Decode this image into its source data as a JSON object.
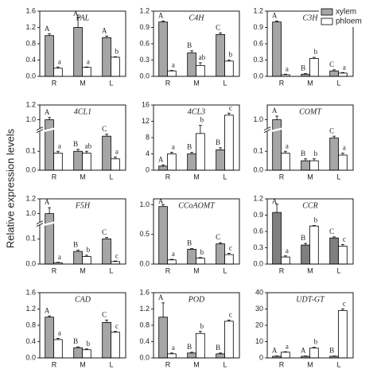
{
  "ylabel": "Relative expression levels",
  "chart_data": [
    {
      "type": "bar",
      "title": "PAL",
      "categories": [
        "R",
        "M",
        "L"
      ],
      "ylim": [
        0,
        1.6
      ],
      "yticks": [
        {
          "value": 0,
          "label": "0.0"
        },
        0.4,
        0.8,
        1.2,
        1.6
      ],
      "series": [
        {
          "name": "xylem",
          "color": "#a6a6a6",
          "values": [
            1.0,
            1.2,
            0.95
          ],
          "errors": [
            0.04,
            0.25,
            0.04
          ],
          "letters": [
            "A",
            "A",
            "A"
          ]
        },
        {
          "name": "phloem",
          "color": "#ffffff",
          "values": [
            0.2,
            0.22,
            0.47
          ],
          "errors": [
            0.03,
            0.01,
            0.01
          ],
          "letters": [
            "a",
            "a",
            "b"
          ]
        }
      ]
    },
    {
      "type": "bar",
      "title": "C4H",
      "categories": [
        "R",
        "M",
        "L"
      ],
      "ylim": [
        0,
        1.2
      ],
      "yticks": [
        {
          "value": 0,
          "label": "0.0"
        },
        0.3,
        0.6,
        0.9,
        1.2
      ],
      "series": [
        {
          "name": "xylem",
          "color": "#a6a6a6",
          "values": [
            1.0,
            0.43,
            0.77
          ],
          "errors": [
            0.02,
            0.04,
            0.03
          ],
          "letters": [
            "A",
            "B",
            "C"
          ]
        },
        {
          "name": "phloem",
          "color": "#ffffff",
          "values": [
            0.1,
            0.2,
            0.28
          ],
          "errors": [
            0.01,
            0.05,
            0.02
          ],
          "letters": [
            "a",
            "ab",
            "b"
          ]
        }
      ]
    },
    {
      "type": "bar",
      "title": "C3H",
      "categories": [
        "R",
        "M",
        "L"
      ],
      "ylim": [
        0,
        1.2
      ],
      "legend": "upper right",
      "yticks": [
        {
          "value": 0,
          "label": "0.0"
        },
        0.3,
        0.6,
        0.9,
        1.2
      ],
      "series": [
        {
          "name": "xylem",
          "color": "#a6a6a6",
          "values": [
            1.0,
            0.04,
            0.1
          ],
          "errors": [
            0.02,
            0.01,
            0.02
          ],
          "letters": [
            "A",
            "B",
            "C"
          ]
        },
        {
          "name": "phloem",
          "color": "#ffffff",
          "values": [
            0.03,
            0.33,
            0.06
          ],
          "errors": [
            0.01,
            0.02,
            0.01
          ],
          "letters": [
            "a",
            "b",
            "a"
          ]
        }
      ]
    },
    {
      "type": "bar",
      "title": "4CL1",
      "categories": [
        "R",
        "M",
        "L"
      ],
      "ylim": [
        0,
        1.2
      ],
      "ybreak": [
        0.2,
        0.9
      ],
      "yticks": [
        {
          "value": 0,
          "label": "0.0"
        },
        0.1,
        {
          "value": 1,
          "label": "1.0"
        },
        1.2
      ],
      "series": [
        {
          "name": "xylem",
          "color": "#a6a6a6",
          "values": [
            1.0,
            0.1,
            0.18
          ],
          "errors": [
            0.03,
            0.01,
            0.01
          ],
          "letters": [
            "A",
            "B",
            "C"
          ]
        },
        {
          "name": "phloem",
          "color": "#ffffff",
          "values": [
            0.09,
            0.09,
            0.06
          ],
          "errors": [
            0.01,
            0.01,
            0.01
          ],
          "letters": [
            "a",
            "ab",
            "a"
          ]
        }
      ]
    },
    {
      "type": "bar",
      "title": "4CL3",
      "categories": [
        "R",
        "M",
        "L"
      ],
      "ylim": [
        0,
        16
      ],
      "yticks": [
        0,
        4,
        8,
        12,
        16
      ],
      "series": [
        {
          "name": "xylem",
          "color": "#a6a6a6",
          "values": [
            1,
            4,
            5
          ],
          "errors": [
            0.3,
            0.4,
            0.5
          ],
          "letters": [
            "A",
            "B",
            "B"
          ]
        },
        {
          "name": "phloem",
          "color": "#ffffff",
          "values": [
            4,
            9,
            13.5
          ],
          "errors": [
            0.4,
            2,
            0.5
          ],
          "letters": [
            "a",
            "b",
            "c"
          ]
        }
      ]
    },
    {
      "type": "bar",
      "title": "COMT",
      "categories": [
        "R",
        "M",
        "L"
      ],
      "ylim": [
        0,
        1.2
      ],
      "ybreak": [
        0.2,
        0.9
      ],
      "yticks": [
        {
          "value": 0,
          "label": "0.0"
        },
        0.1,
        {
          "value": 1,
          "label": "1.0"
        }
      ],
      "series": [
        {
          "name": "xylem",
          "color": "#a6a6a6",
          "values": [
            1.0,
            0.05,
            0.17
          ],
          "errors": [
            0.05,
            0.01,
            0.01
          ],
          "letters": [
            "A",
            "B",
            "C"
          ]
        },
        {
          "name": "phloem",
          "color": "#ffffff",
          "values": [
            0.09,
            0.05,
            0.08
          ],
          "errors": [
            0.01,
            0.01,
            0.01
          ],
          "letters": [
            "a",
            "b",
            "a"
          ]
        }
      ]
    },
    {
      "type": "bar",
      "title": "F5H",
      "categories": [
        "R",
        "M",
        "L"
      ],
      "ylim": [
        0,
        1.2
      ],
      "ybreak": [
        0.15,
        0.9
      ],
      "yticks": [
        {
          "value": 0,
          "label": "0.0"
        },
        0.1,
        {
          "value": 1,
          "label": "1.0"
        },
        1.2
      ],
      "series": [
        {
          "name": "xylem",
          "color": "#a6a6a6",
          "values": [
            1.0,
            0.05,
            0.1
          ],
          "errors": [
            0.08,
            0.005,
            0.005
          ],
          "letters": [
            "A",
            "B",
            "C"
          ]
        },
        {
          "name": "phloem",
          "color": "#ffffff",
          "values": [
            0.005,
            0.03,
            0.01
          ],
          "errors": [
            0.002,
            0.005,
            0.002
          ],
          "letters": [
            "a",
            "b",
            "c"
          ]
        }
      ]
    },
    {
      "type": "bar",
      "title": "CCoAOMT",
      "categories": [
        "R",
        "M",
        "L"
      ],
      "ylim": [
        0,
        1.1
      ],
      "yticks": [
        {
          "value": 0,
          "label": "0.0"
        },
        0.5,
        {
          "value": 1,
          "label": "1.0"
        }
      ],
      "series": [
        {
          "name": "xylem",
          "color": "#a6a6a6",
          "values": [
            0.97,
            0.25,
            0.34
          ],
          "errors": [
            0.03,
            0.01,
            0.02
          ],
          "letters": [
            "A",
            "B",
            "C"
          ]
        },
        {
          "name": "phloem",
          "color": "#ffffff",
          "values": [
            0.07,
            0.1,
            0.16
          ],
          "errors": [
            0.01,
            0.01,
            0.02
          ],
          "letters": [
            "a",
            "b",
            "c"
          ]
        }
      ]
    },
    {
      "type": "bar",
      "title": "CCR",
      "categories": [
        "R",
        "M",
        "L"
      ],
      "ylim": [
        0,
        1.2
      ],
      "yticks": [
        {
          "value": 0,
          "label": "0.0"
        },
        0.3,
        0.6,
        0.9,
        1.2
      ],
      "series": [
        {
          "name": "xylem",
          "color": "#7f7f7f",
          "values": [
            0.95,
            0.35,
            0.48
          ],
          "errors": [
            0.15,
            0.03,
            0.02
          ],
          "letters": [
            "A",
            "B",
            "C"
          ]
        },
        {
          "name": "phloem",
          "color": "#ffffff",
          "values": [
            0.13,
            0.7,
            0.33
          ],
          "errors": [
            0.02,
            0.01,
            0.03
          ],
          "letters": [
            "a",
            "b",
            "c"
          ]
        }
      ]
    },
    {
      "type": "bar",
      "title": "CAD",
      "categories": [
        "R",
        "M",
        "L"
      ],
      "ylim": [
        0,
        1.6
      ],
      "yticks": [
        {
          "value": 0,
          "label": "0.0"
        },
        0.4,
        0.8,
        1.2,
        1.6
      ],
      "series": [
        {
          "name": "xylem",
          "color": "#a6a6a6",
          "values": [
            1.0,
            0.25,
            0.87
          ],
          "errors": [
            0.03,
            0.02,
            0.06
          ],
          "letters": [
            "A",
            "B",
            "C"
          ]
        },
        {
          "name": "phloem",
          "color": "#ffffff",
          "values": [
            0.45,
            0.2,
            0.63
          ],
          "errors": [
            0.03,
            0.02,
            0.02
          ],
          "letters": [
            "a",
            "b",
            "c"
          ]
        }
      ]
    },
    {
      "type": "bar",
      "title": "POD",
      "categories": [
        "R",
        "M",
        "L"
      ],
      "ylim": [
        0,
        1.6
      ],
      "yticks": [
        {
          "value": 0,
          "label": "0.0"
        },
        0.4,
        0.8,
        1.2,
        1.6
      ],
      "series": [
        {
          "name": "xylem",
          "color": "#a6a6a6",
          "values": [
            1.0,
            0.12,
            0.1
          ],
          "errors": [
            0.35,
            0.02,
            0.02
          ],
          "letters": [
            "A",
            "B",
            "B"
          ]
        },
        {
          "name": "phloem",
          "color": "#ffffff",
          "values": [
            0.1,
            0.6,
            0.9
          ],
          "errors": [
            0.02,
            0.05,
            0.03
          ],
          "letters": [
            "a",
            "b",
            "c"
          ]
        }
      ]
    },
    {
      "type": "bar",
      "title": "UDT-GT",
      "categories": [
        "R",
        "M",
        "L"
      ],
      "ylim": [
        0,
        40
      ],
      "yticks": [
        0,
        10,
        20,
        30,
        40
      ],
      "series": [
        {
          "name": "xylem",
          "color": "#a6a6a6",
          "values": [
            1,
            1,
            1
          ],
          "errors": [
            0.2,
            0.2,
            0.2
          ],
          "letters": [
            "A",
            "A",
            "B"
          ]
        },
        {
          "name": "phloem",
          "color": "#ffffff",
          "values": [
            3.5,
            6,
            29
          ],
          "errors": [
            0.3,
            0.5,
            1
          ],
          "letters": [
            "a",
            "b",
            "c"
          ]
        }
      ]
    }
  ]
}
